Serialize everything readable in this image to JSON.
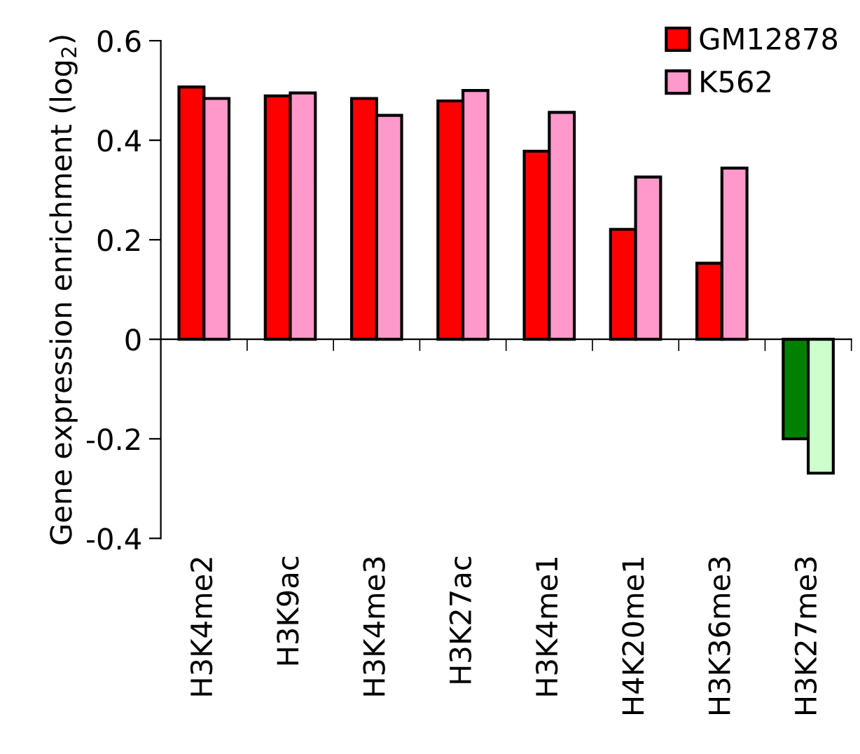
{
  "chart_data": {
    "type": "bar",
    "ylabel": "Gene expression enrichment (log$_{2}$)",
    "categories": [
      "H3K4me2",
      "H3K9ac",
      "H3K4me3",
      "H3K27ac",
      "H3K4me1",
      "H4K20me1",
      "H3K36me3",
      "H3K27me3"
    ],
    "series": [
      {
        "name": "GM12878",
        "color": "#ff0000",
        "colors": [
          "#ff0000",
          "#ff0000",
          "#ff0000",
          "#ff0000",
          "#ff0000",
          "#ff0000",
          "#ff0000",
          "#008000"
        ],
        "values": [
          0.507,
          0.489,
          0.484,
          0.479,
          0.378,
          0.221,
          0.153,
          -0.2
        ]
      },
      {
        "name": "K562",
        "color": "#ff99cc",
        "colors": [
          "#ff99cc",
          "#ff99cc",
          "#ff99cc",
          "#ff99cc",
          "#ff99cc",
          "#ff99cc",
          "#ff99cc",
          "#ccffcc"
        ],
        "values": [
          0.484,
          0.495,
          0.45,
          0.5,
          0.456,
          0.326,
          0.344,
          -0.269
        ]
      }
    ],
    "ylim": [
      -0.4,
      0.6
    ],
    "yticks": [
      -0.4,
      -0.2,
      0,
      0.2,
      0.4,
      0.6
    ],
    "legend": "top right"
  }
}
